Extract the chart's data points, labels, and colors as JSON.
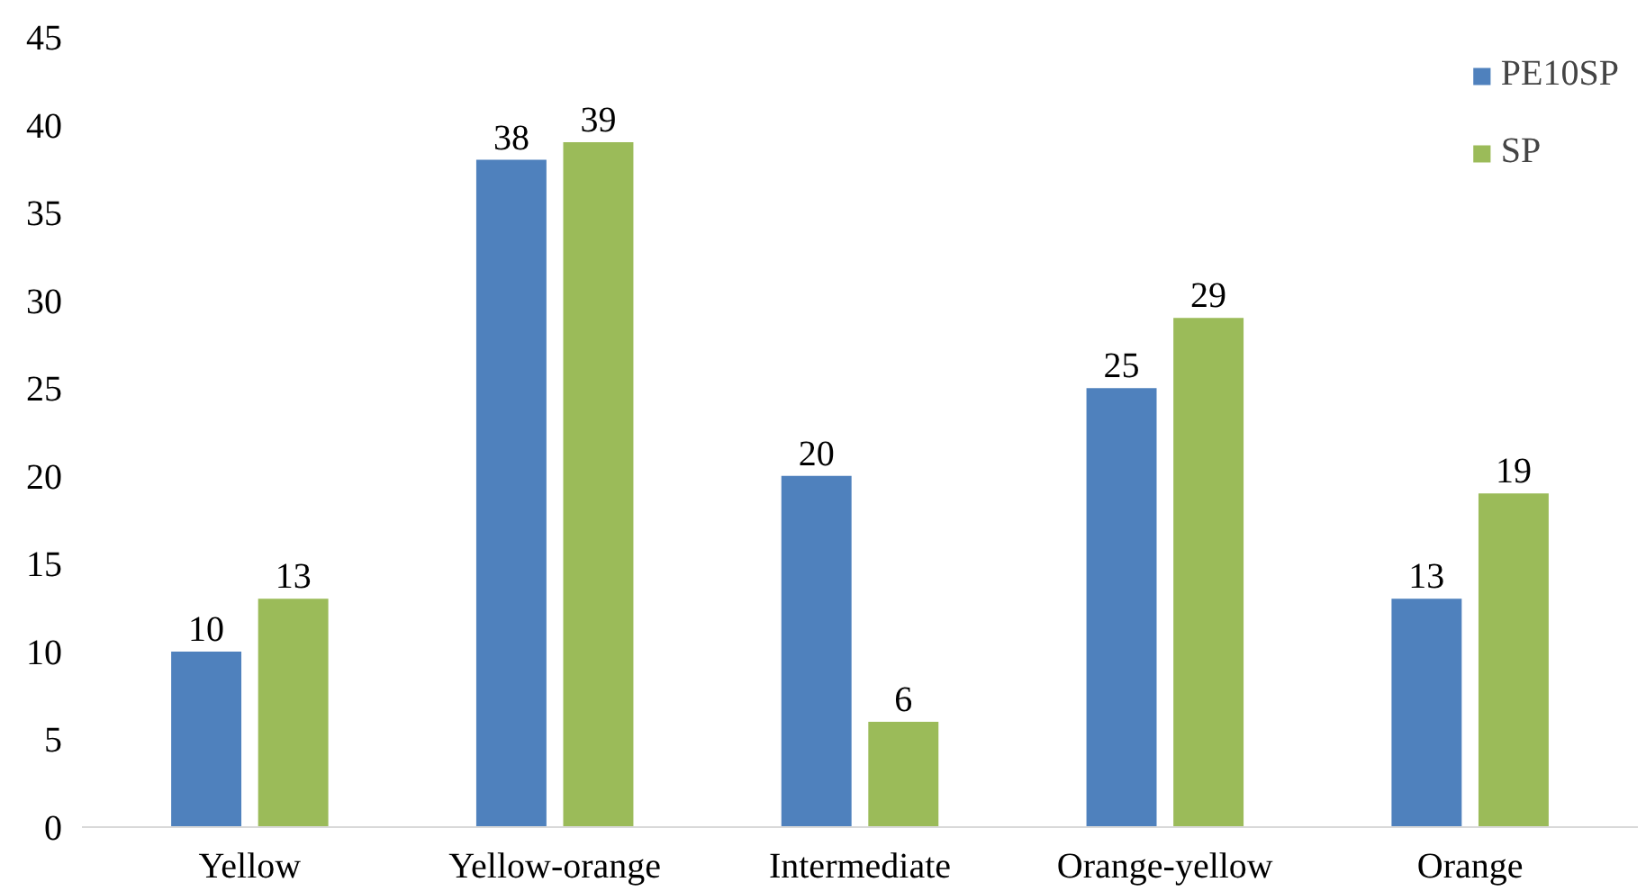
{
  "chart_data": {
    "type": "bar",
    "categories": [
      "Yellow",
      "Yellow-orange",
      "Intermediate",
      "Orange-yellow",
      "Orange"
    ],
    "series": [
      {
        "name": "PE10SP",
        "color": "#4f81bd",
        "values": [
          10,
          38,
          20,
          25,
          13
        ]
      },
      {
        "name": "SP",
        "color": "#9bbb59",
        "values": [
          13,
          39,
          6,
          29,
          19
        ]
      }
    ],
    "ylim": [
      0,
      45
    ],
    "yticks": [
      0,
      5,
      10,
      15,
      20,
      25,
      30,
      35,
      40,
      45
    ],
    "data_labels": true,
    "grid": false,
    "legend": "top right"
  }
}
